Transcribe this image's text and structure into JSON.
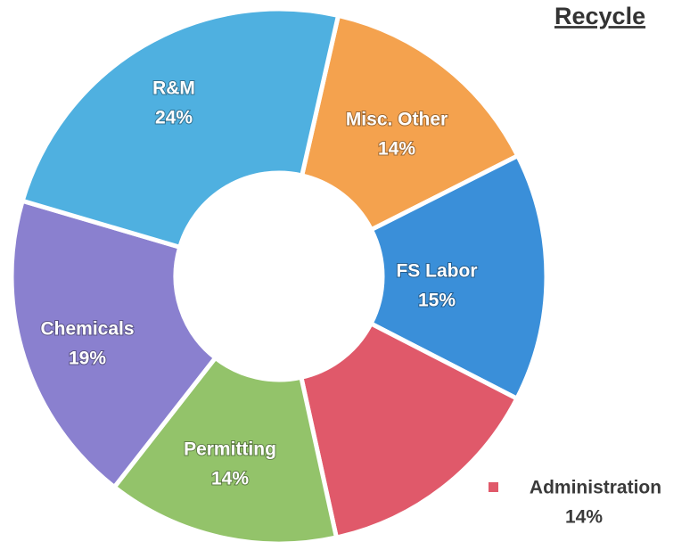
{
  "chart_data": {
    "type": "donut",
    "title": "Recycle",
    "categories": [
      "Misc. Other",
      "FS Labor",
      "Administration",
      "Permitting",
      "Chemicals",
      "R&M"
    ],
    "values": [
      14,
      15,
      14,
      14,
      19,
      24
    ],
    "value_labels": [
      "14%",
      "15%",
      "14%",
      "14%",
      "19%",
      "24%"
    ],
    "colors": [
      "#f4a24e",
      "#3a8fd9",
      "#e0596a",
      "#93c36a",
      "#8a80cf",
      "#4fb0e0"
    ]
  }
}
